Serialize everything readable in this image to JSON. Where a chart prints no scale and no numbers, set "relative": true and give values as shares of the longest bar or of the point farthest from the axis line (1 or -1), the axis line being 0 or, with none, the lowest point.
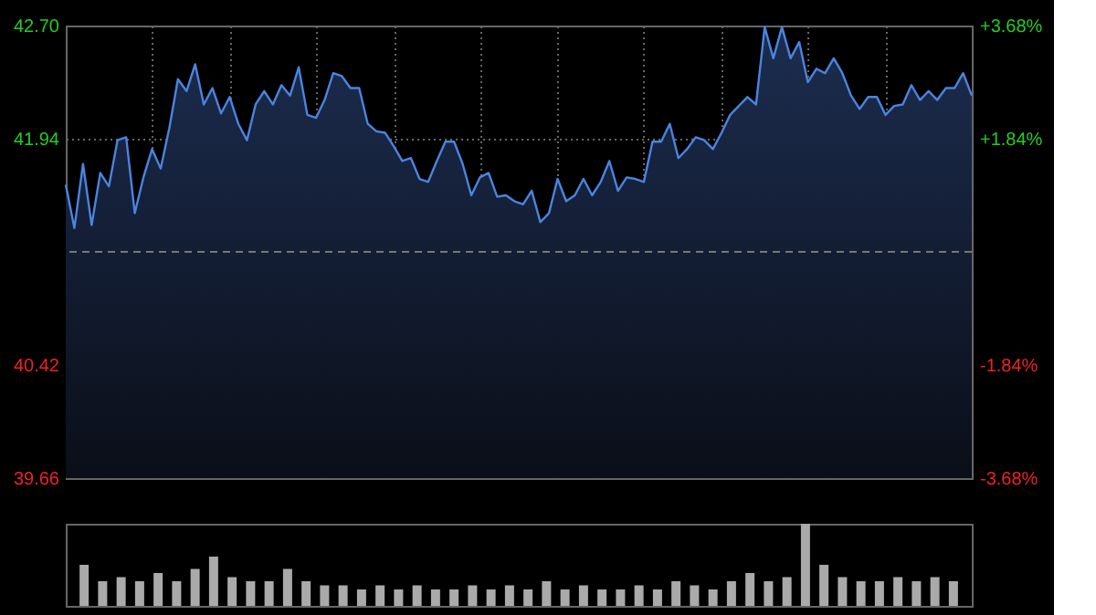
{
  "chart_data": [
    {
      "type": "area",
      "categories": [
        null,
        null,
        null,
        null,
        null,
        null,
        null,
        null,
        null,
        null,
        null,
        null,
        null,
        null,
        null,
        null,
        null,
        null,
        null,
        null,
        null,
        null,
        null,
        null,
        null,
        null,
        null,
        null,
        null,
        null,
        null,
        null,
        null,
        null,
        null,
        null,
        null,
        null,
        null,
        null,
        null,
        null,
        null,
        null,
        null,
        null,
        null,
        null,
        null,
        null,
        null,
        null,
        null,
        null,
        null,
        null,
        null,
        null,
        null,
        null,
        null,
        null,
        null,
        null,
        null,
        null,
        null,
        null,
        null,
        null,
        null,
        null,
        null,
        null,
        null,
        null,
        null,
        null,
        null,
        null,
        null,
        null,
        null,
        null,
        null,
        null,
        null,
        null,
        null,
        null,
        null,
        null,
        null,
        null,
        null,
        null,
        null,
        null,
        null,
        null,
        null,
        null,
        null,
        null,
        null,
        null
      ],
      "series": [
        {
          "color": "#4a84e0",
          "values": [
            41.63,
            41.34,
            41.77,
            41.36,
            41.71,
            41.62,
            41.93,
            41.95,
            41.44,
            41.68,
            41.87,
            41.74,
            42.01,
            42.34,
            42.26,
            42.44,
            42.17,
            42.28,
            42.11,
            42.22,
            42.04,
            41.93,
            42.17,
            42.26,
            42.17,
            42.3,
            42.23,
            42.42,
            42.1,
            42.08,
            42.2,
            42.38,
            42.36,
            42.28,
            42.28,
            42.04,
            41.99,
            41.98,
            41.89,
            41.79,
            41.81,
            41.67,
            41.65,
            41.79,
            41.92,
            41.92,
            41.77,
            41.56,
            41.68,
            41.71,
            41.55,
            41.56,
            41.52,
            41.5,
            41.59,
            41.38,
            41.44,
            41.67,
            41.52,
            41.56,
            41.67,
            41.56,
            41.65,
            41.79,
            41.59,
            41.68,
            41.67,
            41.65,
            41.92,
            41.92,
            42.04,
            41.81,
            41.87,
            41.95,
            41.93,
            41.87,
            41.98,
            42.1,
            42.16,
            42.22,
            42.17,
            42.69,
            42.48,
            42.69,
            42.48,
            42.59,
            42.32,
            42.41,
            42.38,
            42.48,
            42.38,
            42.23,
            42.14,
            42.22,
            42.22,
            42.1,
            42.16,
            42.17,
            42.3,
            42.2,
            42.26,
            42.2,
            42.28,
            42.28,
            42.38,
            42.23
          ]
        }
      ],
      "ylim": [
        39.66,
        42.7
      ],
      "yticks": [
        39.66,
        40.42,
        41.94,
        {
          "value": 42.7,
          "label": "42.70"
        }
      ],
      "y2lim": [
        -3.68,
        3.68
      ],
      "y2ticks": [
        {
          "value": -3.68,
          "label": "-3.68%"
        },
        {
          "value": -1.84,
          "label": "-1.84%"
        },
        {
          "value": 1.84,
          "label": "+1.84%"
        },
        {
          "value": 3.68,
          "label": "+3.68%"
        }
      ],
      "ref_lines": [
        {
          "axis": "y",
          "value": 41.18,
          "color": "#777777",
          "line_style": "dashed"
        }
      ],
      "grid": true,
      "tick_labels": "y"
    },
    {
      "type": "bar",
      "relative": true,
      "categories": [
        null,
        null,
        null,
        null,
        null,
        null,
        null,
        null,
        null,
        null,
        null,
        null,
        null,
        null,
        null,
        null,
        null,
        null,
        null,
        null,
        null,
        null,
        null,
        null,
        null,
        null,
        null,
        null,
        null,
        null,
        null,
        null,
        null,
        null,
        null,
        null,
        null,
        null,
        null,
        null,
        null,
        null,
        null,
        null,
        null,
        null,
        null,
        null
      ],
      "values": [
        0.5,
        0.3,
        0.35,
        0.3,
        0.4,
        0.3,
        0.45,
        0.6,
        0.35,
        0.3,
        0.3,
        0.45,
        0.3,
        0.25,
        0.25,
        0.2,
        0.25,
        0.2,
        0.25,
        0.2,
        0.2,
        0.25,
        0.2,
        0.25,
        0.2,
        0.3,
        0.2,
        0.25,
        0.2,
        0.2,
        0.25,
        0.2,
        0.3,
        0.25,
        0.2,
        0.3,
        0.4,
        0.3,
        0.35,
        1.0,
        0.5,
        0.35,
        0.3,
        0.3,
        0.35,
        0.3,
        0.35,
        0.3
      ],
      "color": "#aaaaaa",
      "tick_labels": false
    }
  ]
}
